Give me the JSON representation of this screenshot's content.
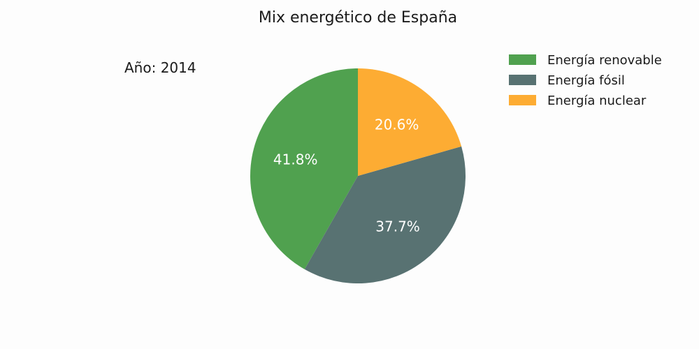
{
  "chart_data": {
    "type": "pie",
    "title": "Mix energético de España",
    "annotation": "Año: 2014",
    "categories": [
      "Energía renovable",
      "Energía fósil",
      "Energía nuclear"
    ],
    "values": [
      41.8,
      37.7,
      20.6
    ],
    "value_labels": [
      "41.8%",
      "37.7%",
      "20.6%"
    ],
    "colors": [
      "#50a14f",
      "#587272",
      "#fdac33"
    ],
    "start": "top",
    "direction": "clockwise",
    "legend": "top-right"
  }
}
